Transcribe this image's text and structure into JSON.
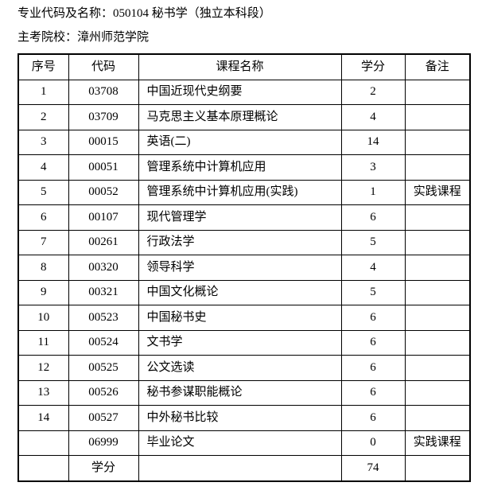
{
  "document": {
    "line1": "专业代码及名称：050104 秘书学（独立本科段）",
    "line2": "主考院校：漳州师范学院"
  },
  "table": {
    "headers": {
      "no": "序号",
      "code": "代码",
      "name": "课程名称",
      "credits": "学分",
      "note": "备注"
    },
    "rows": [
      {
        "no": "1",
        "code": "03708",
        "name": "中国近现代史纲要",
        "credits": "2",
        "note": ""
      },
      {
        "no": "2",
        "code": "03709",
        "name": "马克思主义基本原理概论",
        "credits": "4",
        "note": ""
      },
      {
        "no": "3",
        "code": "00015",
        "name": "英语(二)",
        "credits": "14",
        "note": ""
      },
      {
        "no": "4",
        "code": "00051",
        "name": "管理系统中计算机应用",
        "credits": "3",
        "note": ""
      },
      {
        "no": "5",
        "code": "00052",
        "name": "管理系统中计算机应用(实践)",
        "credits": "1",
        "note": "实践课程"
      },
      {
        "no": "6",
        "code": "00107",
        "name": "现代管理学",
        "credits": "6",
        "note": ""
      },
      {
        "no": "7",
        "code": "00261",
        "name": "行政法学",
        "credits": "5",
        "note": ""
      },
      {
        "no": "8",
        "code": "00320",
        "name": "领导科学",
        "credits": "4",
        "note": ""
      },
      {
        "no": "9",
        "code": "00321",
        "name": "中国文化概论",
        "credits": "5",
        "note": ""
      },
      {
        "no": "10",
        "code": "00523",
        "name": "中国秘书史",
        "credits": "6",
        "note": ""
      },
      {
        "no": "11",
        "code": "00524",
        "name": "文书学",
        "credits": "6",
        "note": ""
      },
      {
        "no": "12",
        "code": "00525",
        "name": "公文选读",
        "credits": "6",
        "note": ""
      },
      {
        "no": "13",
        "code": "00526",
        "name": "秘书参谋职能概论",
        "credits": "6",
        "note": ""
      },
      {
        "no": "14",
        "code": "00527",
        "name": "中外秘书比较",
        "credits": "6",
        "note": ""
      },
      {
        "no": "",
        "code": "06999",
        "name": "毕业论文",
        "credits": "0",
        "note": "实践课程"
      }
    ],
    "footer": {
      "no": "",
      "label": "学分",
      "name": "",
      "total": "74",
      "note": ""
    }
  },
  "colors": {
    "text": "#000000",
    "border": "#000000",
    "background": "#ffffff"
  }
}
